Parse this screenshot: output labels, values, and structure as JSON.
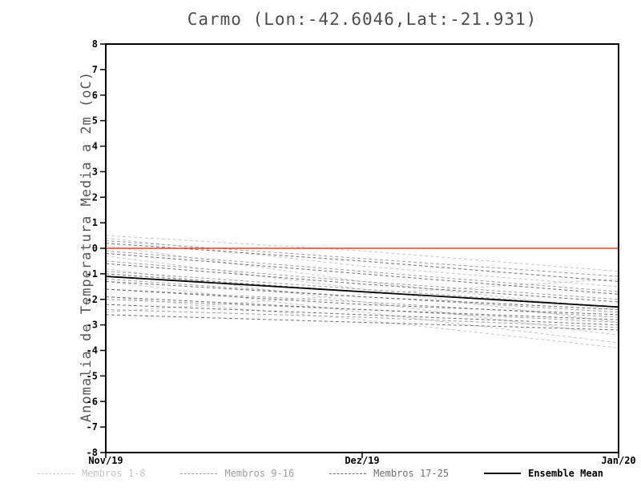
{
  "chart_data": {
    "type": "line",
    "title": "Carmo (Lon:-42.6046,Lat:-21.931)",
    "xlabel": "",
    "ylabel": "Anomalia de Temperatura Media a 2m (oC)",
    "x_categories": [
      "Nov/19",
      "Dez/19",
      "Jan/20"
    ],
    "ylim": [
      -8,
      8
    ],
    "y_ticks": [
      8,
      7,
      6,
      5,
      4,
      3,
      2,
      1,
      0,
      -1,
      -2,
      -3,
      -4,
      -5,
      -6,
      -7,
      -8
    ],
    "grid": false,
    "legend_position": "bottom",
    "zero_line": {
      "y": 0,
      "color": "#ee3b2e"
    },
    "groups": [
      {
        "name": "Membros 1-8",
        "color": "#c6c6c6",
        "dash": true,
        "members": [
          [
            0.5,
            -0.1,
            -0.9
          ],
          [
            0.4,
            -0.7,
            -1.5
          ],
          [
            0.1,
            -1.3,
            -2.4
          ],
          [
            -0.3,
            -1.6,
            -2.9
          ],
          [
            -0.8,
            -2.1,
            -3.4
          ],
          [
            -1.3,
            -2.5,
            -3.7
          ],
          [
            -1.9,
            -2.8,
            -3.9
          ],
          [
            -2.5,
            -1.8,
            -1.2
          ]
        ]
      },
      {
        "name": "Membros 9-16",
        "color": "#9e9e9e",
        "dash": true,
        "members": [
          [
            0.3,
            -0.4,
            -1.1
          ],
          [
            -0.1,
            -0.9,
            -1.7
          ],
          [
            -0.5,
            -1.3,
            -2.0
          ],
          [
            -0.9,
            -1.6,
            -2.3
          ],
          [
            -1.2,
            -1.9,
            -2.5
          ],
          [
            -1.6,
            -2.1,
            -2.7
          ],
          [
            -2.0,
            -2.4,
            -2.9
          ],
          [
            -2.4,
            -2.7,
            -3.1
          ]
        ]
      },
      {
        "name": "Membros 17-25",
        "color": "#6f6f6f",
        "dash": true,
        "members": [
          [
            0.2,
            -0.5,
            -1.3
          ],
          [
            -0.2,
            -1.0,
            -1.8
          ],
          [
            -0.6,
            -1.4,
            -2.1
          ],
          [
            -1.0,
            -1.7,
            -2.3
          ],
          [
            -1.3,
            -1.9,
            -2.4
          ],
          [
            -1.6,
            -2.2,
            -2.6
          ],
          [
            -1.9,
            -2.4,
            -2.8
          ],
          [
            -2.2,
            -2.6,
            -3.0
          ],
          [
            -2.6,
            -2.9,
            -3.2
          ]
        ]
      }
    ],
    "ensemble_mean": {
      "name": "Ensemble Mean",
      "color": "#000000",
      "values": [
        -1.1,
        -1.7,
        -2.3
      ]
    }
  }
}
